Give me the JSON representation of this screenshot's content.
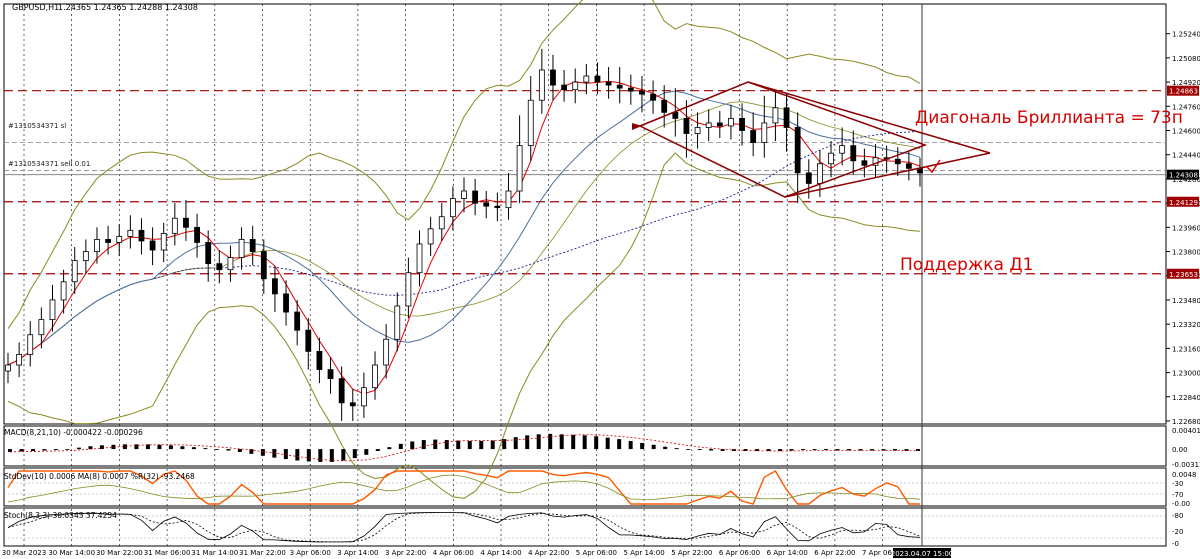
{
  "window": {
    "title": "GBPUSD,H1",
    "ohlc": "1.24365 1.24365 1.24288 1.24308"
  },
  "colors": {
    "up": "#ffffff",
    "down": "#000000",
    "ma_fast": "#e00000",
    "ma_mid": "#4a6f9a",
    "ma_slow": "#1a1a8c",
    "bollinger": "#8a8a22",
    "level": "#a00000",
    "annotation": "#d40000",
    "pattern": "#8b0000",
    "current_tag": "#000000",
    "osc": "#ff5a00"
  },
  "annotations": {
    "diamond": "Диагональ Бриллианта = 73п",
    "support": "Поддержка Д1"
  },
  "orders": [
    {
      "label": "#1310534371 sl",
      "price": 1.2452
    },
    {
      "label": "#1310534371 sell 0.01",
      "price": 1.24336
    }
  ],
  "levels": [
    {
      "price": 1.24863,
      "label": "1.24863"
    },
    {
      "price": 1.24129,
      "label": "1.24129"
    },
    {
      "price": 1.23653,
      "label": "1.23653"
    }
  ],
  "current_price": {
    "price": 1.24308,
    "label": "1.24308"
  },
  "price_axis": {
    "ticks": [
      "1.25240",
      "1.25080",
      "1.24920",
      "1.24760",
      "1.24600",
      "1.24440",
      "1.24280",
      "1.24120",
      "1.23960",
      "1.23800",
      "1.23640",
      "1.23480",
      "1.23320",
      "1.23160",
      "1.23000",
      "1.22840",
      "1.22680"
    ],
    "min": 1.2266,
    "max": 1.2537
  },
  "time_axis": {
    "labels": [
      "30 Mar 2023",
      "30 Mar 14:00",
      "30 Mar 22:00",
      "31 Mar 06:00",
      "31 Mar 14:00",
      "31 Mar 22:00",
      "3 Apr 06:00",
      "3 Apr 14:00",
      "3 Apr 22:00",
      "4 Apr 06:00",
      "4 Apr 14:00",
      "4 Apr 22:00",
      "5 Apr 06:00",
      "5 Apr 14:00",
      "5 Apr 22:00",
      "6 Apr 06:00",
      "6 Apr 14:00",
      "6 Apr 22:00",
      "7 Apr 06:00"
    ],
    "cursor_label": "2023.04.07 15:00"
  },
  "macd": {
    "label": "MACD(8,21,10) -0.000422 -0.000296",
    "ticks": [
      "0.004018",
      "0.00",
      "-0.003137"
    ],
    "max": 0.004018,
    "min": -0.003137,
    "hist": [
      -0.0006,
      -0.0005,
      -0.0004,
      -0.0003,
      -0.0002,
      0.0,
      0.0003,
      0.0006,
      0.0008,
      0.0009,
      0.001,
      0.001,
      0.001,
      0.0009,
      0.0008,
      0.0006,
      0.0004,
      0.0002,
      0.0,
      -0.0003,
      -0.0006,
      -0.001,
      -0.0014,
      -0.0018,
      -0.0021,
      -0.0024,
      -0.0026,
      -0.0027,
      -0.0027,
      -0.0024,
      -0.0019,
      -0.0012,
      -0.0004,
      0.0004,
      0.0011,
      0.0016,
      0.0019,
      0.002,
      0.0019,
      0.0018,
      0.0017,
      0.0017,
      0.0018,
      0.0021,
      0.0025,
      0.0029,
      0.0031,
      0.0032,
      0.0031,
      0.003,
      0.0029,
      0.0027,
      0.0024,
      0.0021,
      0.0017,
      0.0013,
      0.0009,
      0.0005,
      0.0002,
      0.0,
      -0.0002,
      -0.0003,
      -0.0004,
      -0.0004,
      -0.0004,
      -0.0004,
      -0.0004,
      -0.0004,
      -0.0003,
      -0.0002,
      -0.0002,
      -0.0002,
      -0.0003,
      -0.0003,
      -0.0003,
      -0.0003,
      -0.0003,
      -0.0003,
      -0.0004,
      -0.0004
    ]
  },
  "stddev": {
    "label": "StdDev(10) 0.0006 MA(8) 0.0007 %R(32) -93.2468",
    "ticks": [
      "0.0048",
      "-30",
      "-70",
      "-0.00"
    ]
  },
  "stoch": {
    "label": "Stoch(8,3,3) 30.0343 37.4254",
    "ticks": [
      "-80",
      "-20",
      "-0"
    ]
  },
  "chart_data": {
    "type": "candlestick",
    "symbol": "GBPUSD",
    "timeframe": "H1",
    "ylim": [
      1.2266,
      1.2537
    ],
    "close": [
      1.2305,
      1.2312,
      1.2325,
      1.2335,
      1.2348,
      1.236,
      1.2374,
      1.238,
      1.2388,
      1.2386,
      1.239,
      1.2394,
      1.2387,
      1.2381,
      1.2392,
      1.2402,
      1.2396,
      1.2386,
      1.2372,
      1.2368,
      1.2376,
      1.2388,
      1.238,
      1.2362,
      1.2352,
      1.234,
      1.2328,
      1.2314,
      1.2302,
      1.2296,
      1.228,
      1.2278,
      1.229,
      1.2305,
      1.2322,
      1.2344,
      1.2366,
      1.2385,
      1.2395,
      1.2403,
      1.2415,
      1.242,
      1.2412,
      1.241,
      1.2409,
      1.242,
      1.245,
      1.248,
      1.25,
      1.249,
      1.2487,
      1.2492,
      1.2496,
      1.2492,
      1.249,
      1.2488,
      1.2486,
      1.2484,
      1.248,
      1.2472,
      1.2468,
      1.2458,
      1.2462,
      1.2465,
      1.2463,
      1.2468,
      1.246,
      1.2452,
      1.2465,
      1.2475,
      1.2462,
      1.2432,
      1.2425,
      1.2438,
      1.2445,
      1.245,
      1.244,
      1.2437,
      1.2442,
      1.2441,
      1.2438,
      1.2435,
      1.2432
    ],
    "high_offsets": [
      0.0008,
      0.0008,
      0.0009,
      0.0008,
      0.001,
      0.0008,
      0.0009,
      0.0008,
      0.0008,
      0.0009,
      0.0008,
      0.001,
      0.0008,
      0.0009,
      0.0007,
      0.001,
      0.0012,
      0.0009,
      0.0008,
      0.0009,
      0.0008,
      0.0008,
      0.0009,
      0.0008,
      0.0008,
      0.0009,
      0.0008,
      0.0008,
      0.0009,
      0.0008,
      0.0008,
      0.0009,
      0.001,
      0.0009,
      0.001,
      0.0009,
      0.001,
      0.0009,
      0.0008,
      0.0009,
      0.0008,
      0.0009,
      0.0008,
      0.0008,
      0.0009,
      0.0012,
      0.002,
      0.0016,
      0.0014,
      0.001,
      0.001,
      0.0009,
      0.0008,
      0.0009,
      0.001,
      0.0012,
      0.0009,
      0.001,
      0.0009,
      0.001,
      0.0016,
      0.0012,
      0.001,
      0.0009,
      0.0008,
      0.0009,
      0.001,
      0.0012,
      0.0018,
      0.0012,
      0.001,
      0.001,
      0.0009,
      0.0009,
      0.0008,
      0.0012,
      0.001,
      0.0008,
      0.0009,
      0.0008,
      0.0008,
      0.0008,
      0.0007
    ],
    "low_offsets": [
      0.0008,
      0.0008,
      0.0008,
      0.0009,
      0.0008,
      0.0009,
      0.0008,
      0.0009,
      0.0008,
      0.0008,
      0.0009,
      0.0008,
      0.0009,
      0.001,
      0.0008,
      0.0008,
      0.0009,
      0.001,
      0.0012,
      0.0009,
      0.0008,
      0.0008,
      0.0009,
      0.001,
      0.0012,
      0.0009,
      0.001,
      0.0012,
      0.0009,
      0.001,
      0.0012,
      0.001,
      0.0008,
      0.0008,
      0.0009,
      0.0008,
      0.0008,
      0.0009,
      0.0008,
      0.0008,
      0.0009,
      0.0009,
      0.0008,
      0.0008,
      0.0009,
      0.0008,
      0.0008,
      0.001,
      0.0009,
      0.001,
      0.0008,
      0.0009,
      0.0008,
      0.0008,
      0.0009,
      0.001,
      0.0009,
      0.0012,
      0.0009,
      0.001,
      0.0012,
      0.0016,
      0.001,
      0.0009,
      0.0008,
      0.0009,
      0.001,
      0.0009,
      0.001,
      0.0012,
      0.0016,
      0.002,
      0.001,
      0.0009,
      0.0009,
      0.0008,
      0.0009,
      0.0008,
      0.0008,
      0.0009,
      0.0008,
      0.0008,
      0.0009
    ]
  }
}
